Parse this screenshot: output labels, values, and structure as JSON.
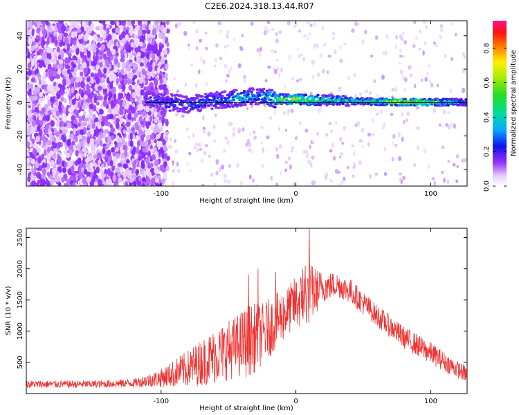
{
  "figure": {
    "title": "C2E6.2024.318.13.44.R07"
  },
  "chart_data": [
    {
      "type": "heatmap",
      "title": "C2E6.2024.318.13.44.R07",
      "xlabel": "Height of straight line (km)",
      "ylabel": "Frequency (Hz)",
      "xlim": [
        -200,
        127
      ],
      "ylim": [
        -50,
        49
      ],
      "x_ticks": [
        -100,
        0,
        100
      ],
      "y_ticks": [
        -40,
        -20,
        0,
        20,
        40
      ],
      "colorbar": {
        "label": "Normalized spectral amplitude",
        "range": [
          0,
          0.96
        ],
        "ticks": [
          0.0,
          0.2,
          0.4,
          0.6,
          0.8
        ]
      },
      "line": {
        "x": [
          -112,
          127
        ],
        "y": [
          0,
          0
        ],
        "color": "#000000"
      },
      "ridge": {
        "x": [
          -112,
          -100,
          -80,
          -60,
          -40,
          -28,
          -15,
          0,
          10,
          20,
          40,
          60,
          80,
          100,
          127
        ],
        "f_hz": [
          2,
          0.5,
          -1,
          1,
          3,
          4,
          2,
          2,
          1.5,
          1.5,
          1,
          0.5,
          0.3,
          0.2,
          0.2
        ],
        "amplitude": [
          0.25,
          0.3,
          0.3,
          0.35,
          0.45,
          0.35,
          0.6,
          0.85,
          0.7,
          0.55,
          0.5,
          0.6,
          0.95,
          0.7,
          0.4
        ]
      }
    },
    {
      "type": "line",
      "xlabel": "Height of straight line (km)",
      "ylabel": "SNR (10 * v/v)",
      "xlim": [
        -200,
        127
      ],
      "ylim": [
        0,
        2650
      ],
      "x_ticks": [
        -100,
        0,
        100
      ],
      "y_ticks": [
        500,
        1000,
        1500,
        2000,
        2500
      ],
      "color": "#ee3333",
      "envelope": {
        "x": [
          -200,
          -150,
          -120,
          -100,
          -80,
          -60,
          -45,
          -35,
          -25,
          -15,
          -5,
          0,
          5,
          10,
          20,
          30,
          40,
          60,
          80,
          100,
          115,
          127
        ],
        "mean": [
          150,
          150,
          170,
          250,
          400,
          600,
          750,
          850,
          950,
          1150,
          1350,
          1450,
          1500,
          1600,
          1700,
          1750,
          1650,
          1250,
          900,
          650,
          450,
          300
        ],
        "spread": [
          60,
          60,
          70,
          150,
          300,
          450,
          500,
          600,
          500,
          450,
          400,
          450,
          450,
          500,
          250,
          200,
          200,
          180,
          180,
          180,
          150,
          130
        ]
      },
      "peaks": [
        {
          "x": 10,
          "y": 2650
        },
        {
          "x": 7,
          "y": 2050
        },
        {
          "x": 5,
          "y": 2000
        },
        {
          "x": -28,
          "y": 2000
        },
        {
          "x": -35,
          "y": 1900
        },
        {
          "x": -15,
          "y": 1950
        }
      ]
    }
  ]
}
